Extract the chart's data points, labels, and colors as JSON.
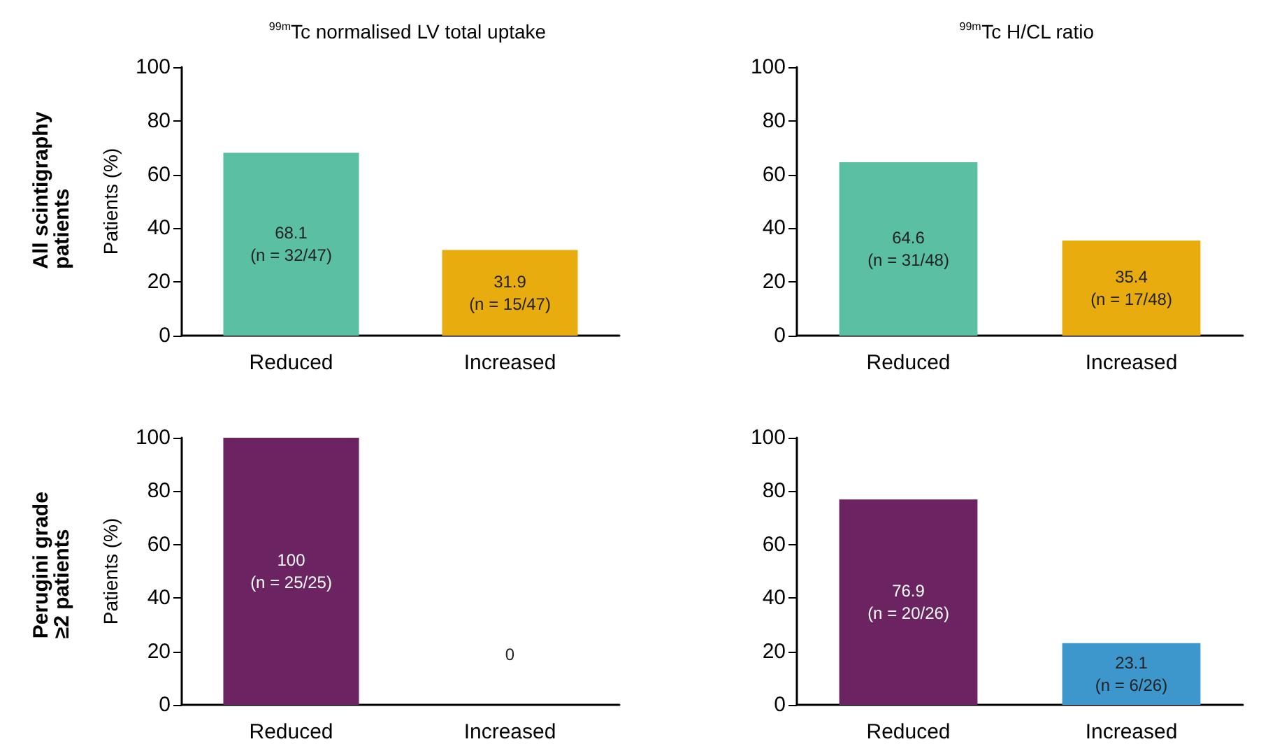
{
  "chart_data": [
    {
      "type": "bar",
      "title": "$^{99m}$Tc normalised LV total uptake",
      "ylabel": "Patients (%)",
      "annotations": [
        "All scintigraphy patients"
      ],
      "categories": [
        "Reduced",
        "Increased"
      ],
      "values": [
        68.1,
        31.9
      ],
      "colors": [
        "#5bbfa3",
        "#e8ac0e"
      ],
      "value_labels": [
        "68.1\n(n = 32/47)",
        "31.9\n(n = 15/47)"
      ],
      "ylim": [
        0,
        100
      ],
      "yticks": [
        0,
        20,
        40,
        60,
        80,
        100
      ],
      "grid": false
    },
    {
      "type": "bar",
      "title": "$^{99m}$Tc H/CL ratio",
      "categories": [
        "Reduced",
        "Increased"
      ],
      "values": [
        64.6,
        35.4
      ],
      "colors": [
        "#5bbfa3",
        "#e8ac0e"
      ],
      "value_labels": [
        "64.6\n(n = 31/48)",
        "35.4\n(n = 17/48)"
      ],
      "ylim": [
        0,
        100
      ],
      "yticks": [
        0,
        20,
        40,
        60,
        80,
        100
      ],
      "grid": false
    },
    {
      "type": "bar",
      "ylabel": "Patients (%)",
      "annotations": [
        "Perugini grade ≥2 patients"
      ],
      "categories": [
        "Reduced",
        "Increased"
      ],
      "values": [
        100,
        0
      ],
      "colors": [
        "#6b2361",
        "#6b2361"
      ],
      "value_labels": [
        "100\n(n = 25/25)",
        "0"
      ],
      "ylim": [
        0,
        100
      ],
      "yticks": [
        0,
        20,
        40,
        60,
        80,
        100
      ],
      "grid": false
    },
    {
      "type": "bar",
      "categories": [
        "Reduced",
        "Increased"
      ],
      "values": [
        76.9,
        23.1
      ],
      "colors": [
        "#6b2361",
        "#3e97cc"
      ],
      "value_labels": [
        "76.9\n(n = 20/26)",
        "23.1\n(n = 6/26)"
      ],
      "ylim": [
        0,
        100
      ],
      "yticks": [
        0,
        20,
        40,
        60,
        80,
        100
      ],
      "grid": false
    }
  ]
}
